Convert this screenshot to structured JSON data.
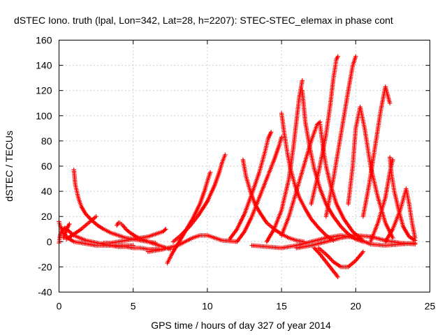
{
  "chart_data": {
    "type": "scatter",
    "title": "dSTEC Iono. truth (lpal, Lon=342, Lat=28, h=2207): STEC-STEC_elemax in phase cont",
    "xlabel": "GPS time / hours of day 327 of year 2014",
    "ylabel": "dSTEC  / TECUs",
    "xlim": [
      0,
      25
    ],
    "ylim": [
      -40,
      160
    ],
    "xticks": [
      "0",
      "5",
      "10",
      "15",
      "20",
      "25"
    ],
    "yticks": [
      "-40",
      "-20",
      "0",
      "20",
      "40",
      "60",
      "80",
      "100",
      "120",
      "140",
      "160"
    ],
    "grid": true,
    "marker": "+",
    "color": "#ff0000",
    "series": [
      {
        "x": [
          0.0,
          0.1,
          0.3,
          0.6,
          1.0,
          1.5,
          2.0,
          2.5,
          3.0,
          3.5,
          4.0,
          4.5,
          5.0,
          5.5,
          6.0,
          6.5,
          7.0
        ],
        "y": [
          16,
          12,
          7,
          3,
          0,
          -1,
          -2,
          -3,
          -3,
          -3,
          -4,
          -4,
          -5,
          -5,
          -6,
          -6,
          -6
        ]
      },
      {
        "x": [
          0.0,
          0.05,
          0.1,
          0.2,
          0.4,
          0.7,
          1.0,
          1.4,
          1.8,
          2.2,
          2.6,
          3.0,
          3.5,
          4.0,
          4.5,
          5.0
        ],
        "y": [
          -1,
          3,
          6,
          9,
          11,
          8,
          5,
          3,
          1,
          0,
          -1,
          -2,
          -3,
          -3,
          -3,
          -3
        ]
      },
      {
        "x": [
          0.3,
          0.4,
          0.5,
          0.6,
          0.7
        ],
        "y": [
          3,
          6,
          9,
          12,
          14
        ]
      },
      {
        "x": [
          1.0,
          1.1,
          1.3,
          1.5,
          1.8,
          2.2,
          2.6,
          3.0,
          3.5,
          4.0,
          4.5,
          5.0,
          5.5,
          6.0,
          6.5
        ],
        "y": [
          57,
          45,
          35,
          28,
          22,
          17,
          13,
          10,
          7,
          5,
          3,
          2,
          1,
          0,
          -1
        ]
      },
      {
        "x": [
          0.5,
          1.0,
          1.5,
          2.0,
          2.5
        ],
        "y": [
          2,
          6,
          10,
          15,
          20
        ]
      },
      {
        "x": [
          3.9,
          4.0,
          4.1,
          4.2,
          4.3,
          4.5,
          4.8,
          5.2,
          5.6,
          6.0,
          6.5,
          7.0,
          7.5
        ],
        "y": [
          13,
          15,
          15,
          14,
          13,
          10,
          7,
          4,
          2,
          0,
          -2,
          -4,
          -6
        ]
      },
      {
        "x": [
          3.0,
          3.5,
          4.0,
          4.5,
          5.0,
          5.5,
          6.0,
          6.5,
          7.0,
          7.2
        ],
        "y": [
          -1,
          -1,
          0,
          1,
          2,
          3,
          4,
          6,
          8,
          10
        ]
      },
      {
        "x": [
          7.3,
          7.6,
          8.0,
          8.5,
          9.0,
          9.5,
          9.8,
          10.0,
          10.2
        ],
        "y": [
          -17,
          -10,
          -2,
          8,
          18,
          30,
          40,
          48,
          55
        ]
      },
      {
        "x": [
          7.7,
          8.2,
          8.8,
          9.4,
          10.0,
          10.5,
          10.8,
          11.0,
          11.2
        ],
        "y": [
          0,
          5,
          12,
          21,
          32,
          45,
          55,
          63,
          69
        ]
      },
      {
        "x": [
          6.0,
          7.0,
          8.0,
          8.5,
          9.0,
          9.5,
          10.0,
          10.5,
          11.0,
          12.0
        ],
        "y": [
          -8,
          -6,
          -3,
          0,
          3,
          5,
          5,
          3,
          1,
          0
        ]
      },
      {
        "x": [
          12.4,
          12.6,
          12.9,
          13.2,
          13.6,
          14.0,
          14.5,
          15.0,
          15.5,
          16.0,
          16.5
        ],
        "y": [
          65,
          52,
          40,
          30,
          22,
          15,
          10,
          6,
          3,
          1,
          0
        ]
      },
      {
        "x": [
          11.5,
          12.0,
          12.5,
          13.0,
          13.5,
          13.9,
          14.1,
          14.3
        ],
        "y": [
          2,
          10,
          22,
          38,
          55,
          72,
          82,
          87
        ]
      },
      {
        "x": [
          12.0,
          12.5,
          13.0,
          13.5,
          14.0,
          14.5,
          14.8,
          15.0
        ],
        "y": [
          0,
          8,
          20,
          35,
          50,
          65,
          75,
          83
        ]
      },
      {
        "x": [
          15.0,
          15.2,
          15.4,
          15.6,
          15.9,
          16.2,
          16.6,
          17.0,
          17.5,
          18.0,
          18.5
        ],
        "y": [
          102,
          85,
          70,
          58,
          45,
          35,
          26,
          18,
          11,
          5,
          1
        ]
      },
      {
        "x": [
          14.0,
          14.5,
          15.0,
          15.5,
          15.8,
          16.0,
          16.2,
          16.4
        ],
        "y": [
          0,
          10,
          25,
          50,
          75,
          95,
          115,
          128
        ]
      },
      {
        "x": [
          16.4,
          16.6,
          16.9,
          17.2,
          17.6,
          18.0,
          18.5,
          19.0,
          19.5,
          20.0,
          20.5
        ],
        "y": [
          120,
          95,
          75,
          58,
          42,
          30,
          20,
          12,
          6,
          2,
          0
        ]
      },
      {
        "x": [
          15.0,
          15.5,
          16.0,
          16.5,
          17.0,
          17.4,
          17.6
        ],
        "y": [
          5,
          20,
          40,
          60,
          80,
          93,
          95
        ]
      },
      {
        "x": [
          17.6,
          17.8,
          18.0,
          18.3,
          18.7,
          19.2,
          19.8,
          20.4
        ],
        "y": [
          93,
          75,
          60,
          45,
          30,
          18,
          8,
          2
        ]
      },
      {
        "x": [
          17.0,
          17.5,
          18.0,
          18.3,
          18.5,
          18.7,
          18.8
        ],
        "y": [
          30,
          55,
          85,
          110,
          130,
          145,
          147
        ]
      },
      {
        "x": [
          18.0,
          18.5,
          19.0,
          19.5,
          19.8,
          20.0
        ],
        "y": [
          20,
          50,
          85,
          120,
          140,
          147
        ]
      },
      {
        "x": [
          19.5,
          19.8,
          20.0,
          20.3,
          20.6,
          21.0,
          21.5,
          22.0,
          22.5
        ],
        "y": [
          30,
          60,
          90,
          107,
          90,
          60,
          35,
          15,
          3
        ]
      },
      {
        "x": [
          20.5,
          20.9,
          21.3,
          21.7,
          22.0,
          22.3
        ],
        "y": [
          20,
          45,
          75,
          105,
          123,
          110
        ]
      },
      {
        "x": [
          22.3,
          22.4,
          22.6,
          22.9,
          23.2,
          23.6,
          24.0
        ],
        "y": [
          67,
          55,
          40,
          25,
          12,
          4,
          1
        ]
      },
      {
        "x": [
          21.0,
          21.5,
          22.0,
          22.3,
          22.5
        ],
        "y": [
          0,
          15,
          35,
          55,
          65
        ]
      },
      {
        "x": [
          22.0,
          22.5,
          23.0,
          23.4,
          23.6,
          23.8,
          24.0
        ],
        "y": [
          0,
          10,
          25,
          42,
          30,
          15,
          3
        ]
      },
      {
        "x": [
          17.2,
          17.6,
          18.0,
          18.4,
          18.8
        ],
        "y": [
          -5,
          -10,
          -16,
          -22,
          -28
        ]
      },
      {
        "x": [
          17.5,
          18.0,
          18.5,
          19.0,
          19.5,
          20.0,
          20.5
        ],
        "y": [
          -5,
          -10,
          -16,
          -20,
          -20,
          -15,
          -8
        ]
      },
      {
        "x": [
          13.0,
          14.0,
          15.0,
          16.0,
          17.0,
          18.0,
          19.0,
          20.0,
          21.0,
          22.0,
          23.0,
          24.0
        ],
        "y": [
          -3,
          -4,
          -5,
          -3,
          0,
          3,
          5,
          3,
          -2,
          -3,
          -2,
          -1
        ]
      },
      {
        "x": [
          16.0,
          17.0,
          18.0,
          19.0,
          20.0,
          21.0,
          22.0,
          23.0,
          24.0
        ],
        "y": [
          -5,
          -3,
          0,
          3,
          5,
          4,
          1,
          -1,
          -2
        ]
      }
    ]
  }
}
